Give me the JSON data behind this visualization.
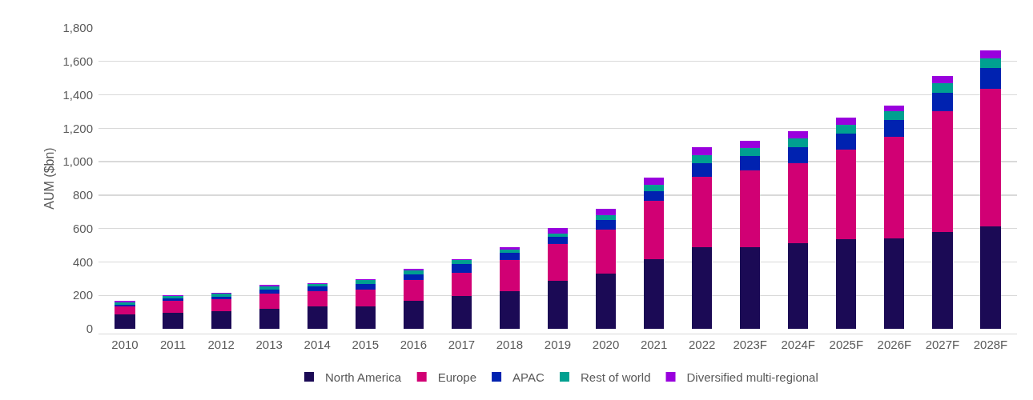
{
  "chart_data": {
    "type": "bar",
    "stacked": true,
    "ylabel": "AUM ($bn)",
    "categories": [
      "2010",
      "2011",
      "2012",
      "2013",
      "2014",
      "2015",
      "2016",
      "2017",
      "2018",
      "2019",
      "2020",
      "2021",
      "2022",
      "2023F",
      "2024F",
      "2025F",
      "2026F",
      "2027F",
      "2028F"
    ],
    "series": [
      {
        "name": "North America",
        "color": "#1b0a55",
        "values": [
          84,
          98,
          106,
          122,
          136,
          136,
          166,
          195,
          225,
          285,
          329,
          418,
          490,
          490,
          514,
          535,
          541,
          577,
          615
        ]
      },
      {
        "name": "Europe",
        "color": "#d10074",
        "values": [
          52,
          68,
          73,
          88,
          87,
          97,
          127,
          142,
          185,
          221,
          266,
          346,
          421,
          457,
          478,
          537,
          606,
          725,
          820
        ]
      },
      {
        "name": "APAC",
        "color": "#0022b0",
        "values": [
          8,
          16,
          12,
          23,
          32,
          36,
          34,
          51,
          44,
          43,
          58,
          59,
          81,
          89,
          96,
          97,
          103,
          111,
          125
        ]
      },
      {
        "name": "Rest of world",
        "color": "#00a090",
        "values": [
          16,
          13,
          18,
          20,
          14,
          22,
          23,
          22,
          22,
          22,
          29,
          37,
          46,
          44,
          51,
          52,
          52,
          58,
          58
        ]
      },
      {
        "name": "Diversified multi-regional",
        "color": "#9900dd",
        "values": [
          6,
          7,
          8,
          8,
          6,
          8,
          7,
          8,
          14,
          30,
          38,
          43,
          49,
          45,
          44,
          44,
          36,
          44,
          46
        ]
      }
    ],
    "ylim": [
      0,
      1800
    ],
    "yticks": [
      0,
      200,
      400,
      600,
      800,
      {
        "value": 1000,
        "label": "1,000"
      },
      {
        "value": 1200,
        "label": "1,200"
      },
      {
        "value": 1400,
        "label": "1,400"
      },
      {
        "value": 1600,
        "label": "1,600"
      },
      {
        "value": 1800,
        "label": "1,800"
      }
    ],
    "grid": "y",
    "legend": "bottom"
  }
}
